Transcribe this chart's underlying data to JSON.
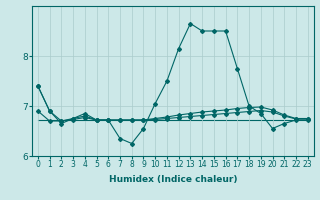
{
  "xlabel": "Humidex (Indice chaleur)",
  "x": [
    0,
    1,
    2,
    3,
    4,
    5,
    6,
    7,
    8,
    9,
    10,
    11,
    12,
    13,
    14,
    15,
    16,
    17,
    18,
    19,
    20,
    21,
    22,
    23
  ],
  "line_main": [
    7.4,
    6.9,
    6.65,
    6.75,
    6.85,
    6.72,
    6.72,
    6.35,
    6.25,
    6.55,
    7.05,
    7.5,
    8.15,
    8.65,
    8.5,
    8.5,
    8.5,
    7.75,
    7.0,
    6.85,
    6.55,
    6.65,
    6.72,
    6.72
  ],
  "line_trend1": [
    7.4,
    6.9,
    6.7,
    6.75,
    6.8,
    6.72,
    6.72,
    6.72,
    6.72,
    6.72,
    6.75,
    6.78,
    6.82,
    6.85,
    6.88,
    6.9,
    6.92,
    6.95,
    6.97,
    6.98,
    6.92,
    6.82,
    6.75,
    6.75
  ],
  "line_trend2": [
    6.9,
    6.7,
    6.7,
    6.73,
    6.77,
    6.72,
    6.72,
    6.72,
    6.72,
    6.72,
    6.73,
    6.75,
    6.77,
    6.79,
    6.81,
    6.83,
    6.85,
    6.87,
    6.89,
    6.91,
    6.88,
    6.8,
    6.74,
    6.74
  ],
  "line_flat": [
    6.72,
    6.72,
    6.72,
    6.72,
    6.72,
    6.72,
    6.72,
    6.72,
    6.72,
    6.72,
    6.72,
    6.72,
    6.72,
    6.72,
    6.72,
    6.72,
    6.72,
    6.72,
    6.72,
    6.72,
    6.72,
    6.72,
    6.72,
    6.72
  ],
  "ylim": [
    6.0,
    9.0
  ],
  "yticks": [
    6,
    7,
    8
  ],
  "bg_color": "#cce8e8",
  "grid_color": "#aacccc",
  "line_color": "#006666",
  "marker": "D",
  "marker_size": 2.0,
  "linewidth": 0.8,
  "xlabel_fontsize": 6.5,
  "tick_fontsize": 5.5,
  "ytick_fontsize": 6.5
}
